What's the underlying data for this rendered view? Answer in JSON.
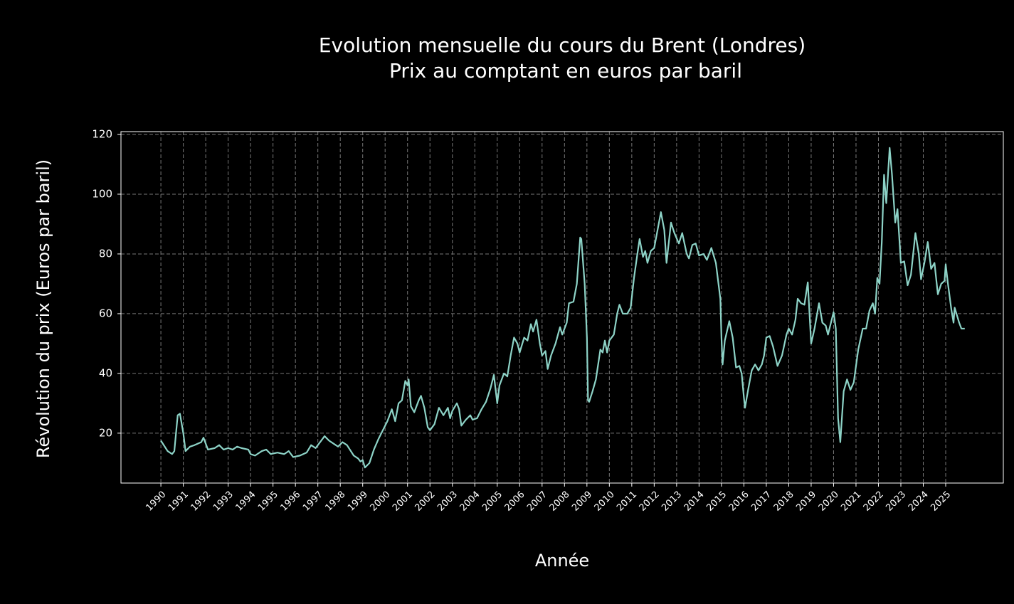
{
  "chart_data": {
    "type": "line",
    "title": "Evolution mensuelle du cours du Brent (Londres)",
    "subtitle": "Prix au comptant en euros par baril",
    "x_label": "Année",
    "y_label": "Révolution du prix (Euros par baril)",
    "color": "#8dd3c7",
    "grid": true,
    "xlim": [
      1988.22,
      2027.57
    ],
    "ylim": [
      3.3,
      120.95
    ],
    "xticks": [
      1990,
      1991,
      1992,
      1993,
      1994,
      1995,
      1996,
      1997,
      1998,
      1999,
      2000,
      2001,
      2002,
      2003,
      2004,
      2005,
      2006,
      2007,
      2008,
      2009,
      2010,
      2011,
      2012,
      2013,
      2014,
      2015,
      2016,
      2017,
      2018,
      2019,
      2020,
      2021,
      2022,
      2023,
      2024,
      2025
    ],
    "yticks": [
      20,
      40,
      60,
      80,
      100,
      120
    ],
    "x": [
      1990.0,
      1990.3,
      1990.5,
      1990.6,
      1990.75,
      1990.85,
      1991.0,
      1991.1,
      1991.3,
      1991.5,
      1991.8,
      1991.9,
      1992.1,
      1992.4,
      1992.6,
      1992.8,
      1993.0,
      1993.2,
      1993.4,
      1993.6,
      1993.9,
      1994.0,
      1994.2,
      1994.5,
      1994.7,
      1994.9,
      1995.2,
      1995.5,
      1995.7,
      1995.9,
      1996.2,
      1996.5,
      1996.7,
      1996.9,
      1997.1,
      1997.3,
      1997.5,
      1997.7,
      1997.9,
      1998.1,
      1998.3,
      1998.6,
      1998.8,
      1998.9,
      1999.0,
      1999.1,
      1999.3,
      1999.5,
      1999.7,
      1999.9,
      2000.1,
      2000.3,
      2000.45,
      2000.6,
      2000.75,
      2000.9,
      2001.0,
      2001.05,
      2001.15,
      2001.3,
      2001.5,
      2001.6,
      2001.75,
      2001.9,
      2002.0,
      2002.2,
      2002.4,
      2002.6,
      2002.8,
      2002.9,
      2003.0,
      2003.2,
      2003.3,
      2003.4,
      2003.6,
      2003.8,
      2003.9,
      2004.1,
      2004.3,
      2004.5,
      2004.7,
      2004.85,
      2005.0,
      2005.1,
      2005.3,
      2005.45,
      2005.6,
      2005.75,
      2005.9,
      2006.0,
      2006.2,
      2006.35,
      2006.5,
      2006.6,
      2006.75,
      2006.9,
      2007.0,
      2007.15,
      2007.25,
      2007.4,
      2007.6,
      2007.8,
      2007.9,
      2008.1,
      2008.2,
      2008.4,
      2008.55,
      2008.7,
      2008.75,
      2008.9,
      2009.0,
      2009.05,
      2009.1,
      2009.25,
      2009.4,
      2009.6,
      2009.7,
      2009.8,
      2009.9,
      2010.0,
      2010.2,
      2010.35,
      2010.45,
      2010.6,
      2010.8,
      2010.95,
      2011.1,
      2011.25,
      2011.35,
      2011.5,
      2011.6,
      2011.7,
      2011.85,
      2012.0,
      2012.2,
      2012.3,
      2012.45,
      2012.55,
      2012.75,
      2012.9,
      2013.1,
      2013.25,
      2013.45,
      2013.55,
      2013.7,
      2013.85,
      2014.0,
      2014.2,
      2014.35,
      2014.55,
      2014.75,
      2014.85,
      2014.95,
      2015.0,
      2015.05,
      2015.15,
      2015.35,
      2015.5,
      2015.65,
      2015.8,
      2015.9,
      2016.0,
      2016.05,
      2016.2,
      2016.35,
      2016.5,
      2016.65,
      2016.8,
      2016.9,
      2017.0,
      2017.15,
      2017.3,
      2017.5,
      2017.7,
      2017.9,
      2018.0,
      2018.15,
      2018.3,
      2018.4,
      2018.55,
      2018.7,
      2018.85,
      2019.0,
      2019.15,
      2019.35,
      2019.5,
      2019.65,
      2019.75,
      2019.85,
      2020.0,
      2020.1,
      2020.2,
      2020.3,
      2020.45,
      2020.6,
      2020.75,
      2020.9,
      2021.1,
      2021.3,
      2021.45,
      2021.6,
      2021.75,
      2021.85,
      2021.95,
      2022.05,
      2022.15,
      2022.25,
      2022.35,
      2022.5,
      2022.6,
      2022.75,
      2022.85,
      2023.0,
      2023.15,
      2023.3,
      2023.45,
      2023.65,
      2023.8,
      2023.9,
      2024.05,
      2024.2,
      2024.35,
      2024.5,
      2024.65,
      2024.8,
      2024.95,
      2025.0,
      2025.1,
      2025.25,
      2025.35,
      2025.4,
      2025.6,
      2025.7,
      2025.85
    ],
    "values": [
      17.5,
      14,
      13,
      14,
      26,
      26.5,
      20,
      14,
      15.5,
      16,
      17,
      18.5,
      14.5,
      15,
      16,
      14.5,
      15,
      14.5,
      15.5,
      15,
      14.5,
      13,
      12.5,
      14,
      14.5,
      13,
      13.5,
      13,
      14,
      12,
      12.5,
      13.5,
      16,
      15,
      17,
      19,
      17.5,
      16.5,
      15.5,
      17,
      16,
      12.5,
      11.5,
      10.5,
      11,
      8.5,
      10,
      14.5,
      18,
      21,
      24,
      28,
      24,
      30,
      31,
      37.5,
      36,
      38,
      29,
      27,
      31,
      32.5,
      28.5,
      22,
      21,
      23,
      28.5,
      26,
      28.5,
      25,
      27.5,
      30,
      28,
      22.5,
      24.5,
      26,
      24.5,
      25,
      28,
      30.5,
      35,
      39.5,
      30,
      36,
      40,
      39,
      46,
      52,
      50,
      47,
      52,
      51,
      56.5,
      54,
      58,
      50,
      46,
      47.5,
      41.5,
      46,
      50,
      55.5,
      53,
      57,
      63.5,
      64,
      70,
      85.5,
      85,
      70,
      52,
      31,
      30.5,
      34,
      38,
      48,
      47,
      51,
      47,
      51,
      53,
      60,
      63,
      60,
      60,
      62,
      72,
      80,
      85,
      79,
      81,
      77,
      81,
      82,
      90,
      94,
      88,
      77,
      90.5,
      87,
      83.5,
      87,
      80,
      78.5,
      83,
      83.5,
      79.5,
      80,
      78,
      82,
      77,
      71,
      65,
      52,
      43,
      51,
      57.5,
      52,
      42,
      42.5,
      40,
      32,
      28.5,
      35,
      41,
      43,
      41,
      43,
      46,
      52,
      52.5,
      49,
      42.5,
      46,
      53,
      55,
      53,
      58,
      65,
      63.5,
      63,
      70.5,
      50,
      55,
      63.5,
      57,
      56,
      53,
      56,
      60.5,
      55,
      25,
      17,
      34,
      38,
      34.5,
      37,
      48,
      55,
      55,
      61,
      63.5,
      60,
      72,
      70,
      84,
      106.5,
      97,
      115.5,
      107,
      90.5,
      95,
      77,
      77.5,
      69.5,
      73,
      87,
      80,
      71.5,
      77,
      84,
      75,
      77,
      66.5,
      70,
      71,
      76.5,
      70,
      61.5,
      57,
      62,
      57,
      55,
      55
    ]
  }
}
